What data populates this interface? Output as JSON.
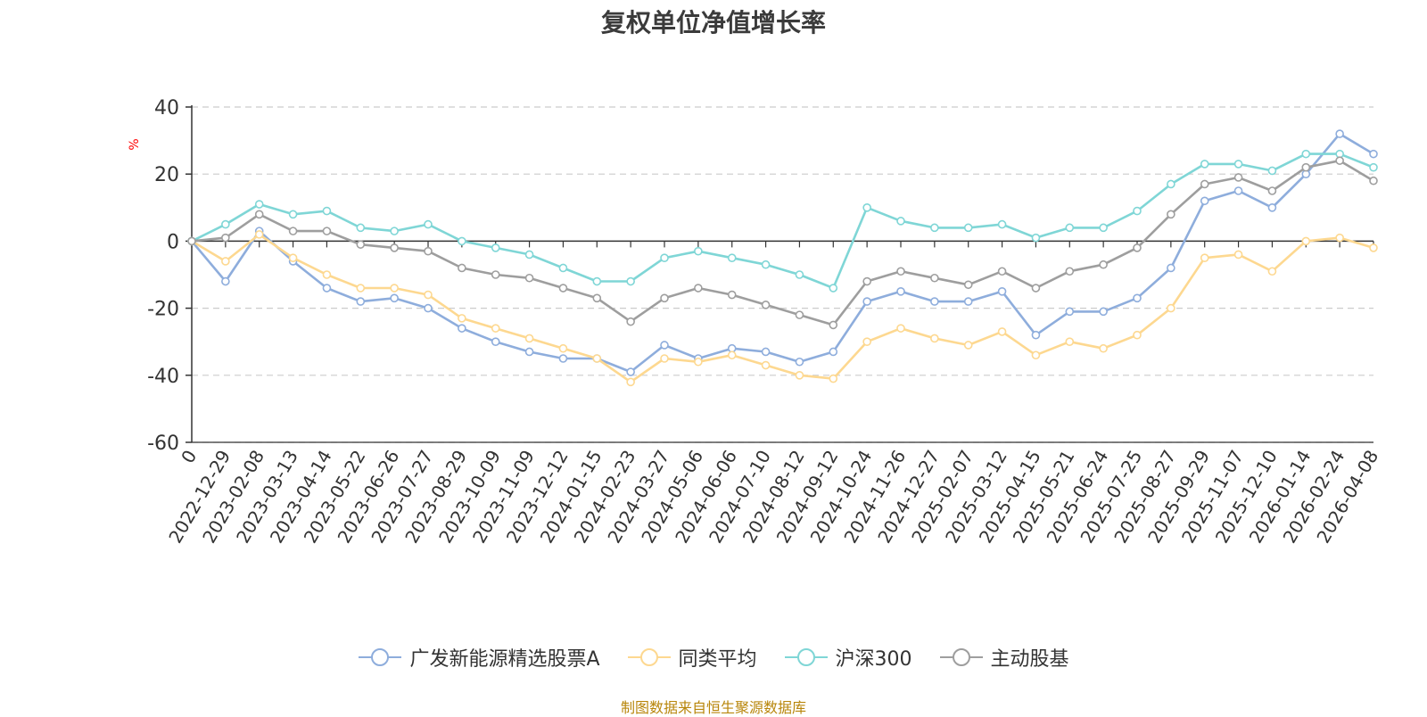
{
  "chart_data": {
    "type": "line",
    "title": "复权单位净值增长率",
    "ylabel": "%",
    "ylim": [
      -60,
      40
    ],
    "yticks": [
      40,
      20,
      0,
      -20,
      -40,
      -60
    ],
    "grid": true,
    "legend_position": "bottom-center",
    "categories": [
      "0",
      "2022-12-29",
      "2023-02-08",
      "2023-03-13",
      "2023-04-14",
      "2023-05-22",
      "2023-06-26",
      "2023-07-27",
      "2023-08-29",
      "2023-10-09",
      "2023-11-09",
      "2023-12-12",
      "2024-01-15",
      "2024-02-23",
      "2024-03-27",
      "2024-05-06",
      "2024-06-06",
      "2024-07-10",
      "2024-08-12",
      "2024-09-12",
      "2024-10-24",
      "2024-11-26",
      "2024-12-27",
      "2025-02-07",
      "2025-03-12",
      "2025-04-15",
      "2025-05-21",
      "2025-06-24",
      "2025-07-25",
      "2025-08-27",
      "2025-09-29",
      "2025-11-07",
      "2025-12-10",
      "2026-01-14",
      "2026-02-24",
      "2026-04-08"
    ],
    "series": [
      {
        "name": "广发新能源精选股票A",
        "color": "#8eaddc",
        "values": [
          0,
          -12,
          3,
          -6,
          -14,
          -18,
          -17,
          -20,
          -26,
          -30,
          -33,
          -35,
          -35,
          -39,
          -31,
          -35,
          -32,
          -33,
          -36,
          -33,
          -18,
          -15,
          -18,
          -18,
          -15,
          -28,
          -21,
          -21,
          -17,
          -8,
          12,
          15,
          10,
          20,
          32,
          26
        ]
      },
      {
        "name": "同类平均",
        "color": "#fdd890",
        "values": [
          0,
          -6,
          2,
          -5,
          -10,
          -14,
          -14,
          -16,
          -23,
          -26,
          -29,
          -32,
          -35,
          -42,
          -35,
          -36,
          -34,
          -37,
          -40,
          -41,
          -30,
          -26,
          -29,
          -31,
          -27,
          -34,
          -30,
          -32,
          -28,
          -20,
          -5,
          -4,
          -9,
          0,
          1,
          -2
        ]
      },
      {
        "name": "沪深300",
        "color": "#7fd6d6",
        "values": [
          0,
          5,
          11,
          8,
          9,
          4,
          3,
          5,
          0,
          -2,
          -4,
          -8,
          -12,
          -12,
          -5,
          -3,
          -5,
          -7,
          -10,
          -14,
          10,
          6,
          4,
          4,
          5,
          1,
          4,
          4,
          9,
          17,
          23,
          23,
          21,
          26,
          26,
          22
        ]
      },
      {
        "name": "主动股基",
        "color": "#9e9e9e",
        "values": [
          0,
          1,
          8,
          3,
          3,
          -1,
          -2,
          -3,
          -8,
          -10,
          -11,
          -14,
          -17,
          -24,
          -17,
          -14,
          -16,
          -19,
          -22,
          -25,
          -12,
          -9,
          -11,
          -13,
          -9,
          -14,
          -9,
          -7,
          -2,
          8,
          17,
          19,
          15,
          22,
          24,
          18
        ]
      }
    ]
  },
  "source_note": "制图数据来自恒生聚源数据库"
}
